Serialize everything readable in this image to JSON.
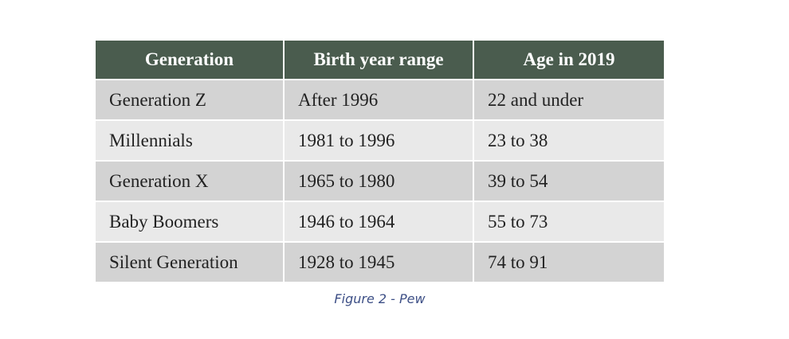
{
  "table": {
    "headers": [
      "Generation",
      "Birth year range",
      "Age in 2019"
    ],
    "rows": [
      [
        "Generation Z",
        "After 1996",
        "22 and under"
      ],
      [
        "Millennials",
        "1981 to 1996",
        "23 to 38"
      ],
      [
        "Generation X",
        "1965 to 1980",
        "39 to 54"
      ],
      [
        "Baby Boomers",
        "1946 to 1964",
        "55 to 73"
      ],
      [
        "Silent Generation",
        "1928 to 1945",
        "74 to 91"
      ]
    ]
  },
  "caption": "Figure 2 - Pew",
  "colors": {
    "header_bg": "#4a5c4e",
    "header_text": "#ffffff",
    "row_dark": "#d3d3d3",
    "row_light": "#e9e9e9",
    "caption": "#3d4f86"
  }
}
